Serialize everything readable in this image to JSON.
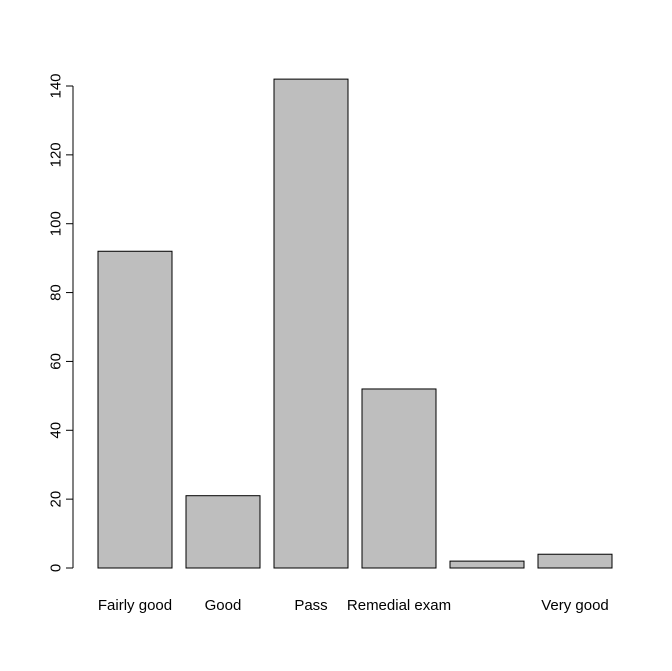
{
  "chart_data": {
    "type": "bar",
    "title": "",
    "xlabel": "",
    "ylabel": "",
    "categories": [
      "Fairly good",
      "Good",
      "Pass",
      "Remedial exam",
      "",
      "Very good"
    ],
    "values": [
      92,
      21,
      142,
      52,
      2,
      4
    ],
    "ylim": [
      0,
      140
    ],
    "yticks": [
      0,
      20,
      40,
      60,
      80,
      100,
      120,
      140
    ],
    "bar_color": "#bebebe",
    "grid": false,
    "legend": "none"
  }
}
